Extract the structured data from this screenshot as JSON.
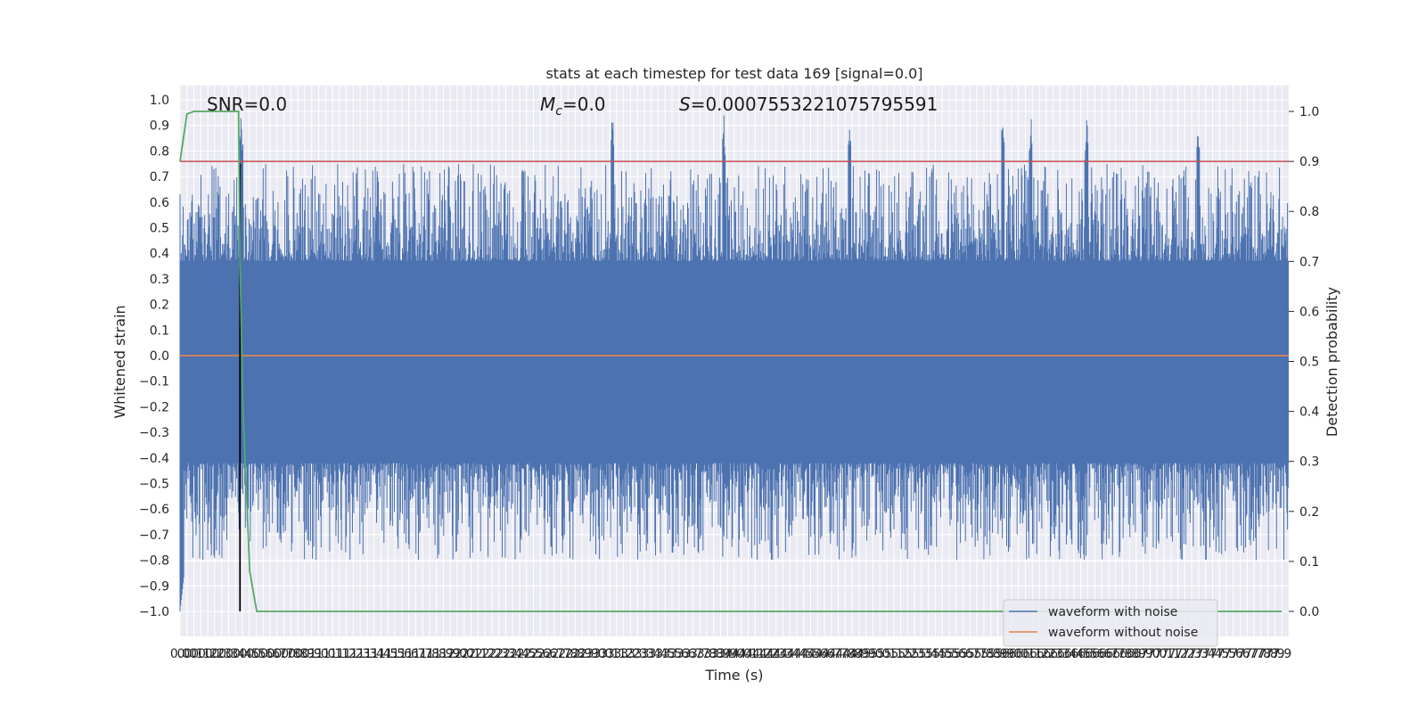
{
  "chart_data": {
    "type": "line",
    "title": "stats at each timestep for test data 169 [signal=0.0]",
    "xlabel": "Time (s)",
    "ylabel": "Whitened strain",
    "ylabel_right": "Detection probability",
    "annotations": {
      "snr": "SNR=0.0",
      "mc_symbol": "M",
      "mc_sub": "c",
      "mc_value": "=0.0",
      "s_symbol": "S",
      "s_value": "=0.0007553221075795591"
    },
    "xlim": [
      0.0,
      7.95
    ],
    "ylim": [
      -1.1,
      1.05
    ],
    "ylim_right": [
      -0.05,
      1.05
    ],
    "x_ticks": [
      "0.0",
      "0.0",
      "0.1",
      "0.1",
      "0.2",
      "0.2",
      "0.3",
      "0.3",
      "0.4",
      "0.4",
      "0.5",
      "0.5",
      "0.6",
      "0.6",
      "0.7",
      "0.7",
      "0.8",
      "0.8",
      "0.9",
      "0.9",
      "1.0",
      "1.0",
      "1.1",
      "1.1",
      "1.2",
      "1.2",
      "1.3",
      "1.3",
      "1.4",
      "1.4",
      "1.5",
      "1.5",
      "1.6",
      "1.6",
      "1.7",
      "1.7",
      "1.8",
      "1.8",
      "1.9",
      "1.9",
      "2.0",
      "2.0",
      "2.1",
      "2.1",
      "2.2",
      "2.2",
      "2.3",
      "2.3",
      "2.4",
      "2.4",
      "2.5",
      "2.5",
      "2.6",
      "2.6",
      "2.7",
      "2.7",
      "2.8",
      "2.8",
      "2.9",
      "2.9",
      "3.0",
      "3.0",
      "3.1",
      "3.1",
      "3.2",
      "3.2",
      "3.3",
      "3.3",
      "3.4",
      "3.4",
      "3.5",
      "3.5",
      "3.6",
      "3.6",
      "3.7",
      "3.7",
      "3.8",
      "3.8",
      "3.9",
      "3.9",
      "4.0",
      "4.0",
      "4.1",
      "4.1",
      "4.2",
      "4.2",
      "4.3",
      "4.3",
      "4.4",
      "4.4",
      "4.5",
      "4.5",
      "4.6",
      "4.6",
      "4.7",
      "4.7",
      "4.8",
      "4.8",
      "4.9",
      "4.9",
      "5.0",
      "5.0",
      "5.1",
      "5.1",
      "5.2",
      "5.2",
      "5.3",
      "5.3",
      "5.4",
      "5.4",
      "5.5",
      "5.5",
      "5.6",
      "5.6",
      "5.7",
      "5.7",
      "5.8",
      "5.8",
      "5.9",
      "5.9",
      "6.0",
      "6.0",
      "6.1",
      "6.1",
      "6.2",
      "6.2",
      "6.3",
      "6.3",
      "6.4",
      "6.4",
      "6.5",
      "6.5",
      "6.6",
      "6.6",
      "6.7",
      "6.7",
      "6.8",
      "6.8",
      "6.9",
      "6.9",
      "7.0",
      "7.0",
      "7.1",
      "7.1",
      "7.2",
      "7.2",
      "7.3",
      "7.3",
      "7.4",
      "7.4",
      "7.5",
      "7.5",
      "7.6",
      "7.6",
      "7.7",
      "7.7",
      "7.8",
      "7.8",
      "7.9",
      "7.9"
    ],
    "y_ticks": [
      "1.0",
      "0.9",
      "0.8",
      "0.7",
      "0.6",
      "0.5",
      "0.4",
      "0.3",
      "0.2",
      "0.1",
      "0.0",
      "-0.1",
      "-0.2",
      "-0.3",
      "-0.4",
      "-0.5",
      "-0.6",
      "-0.7",
      "-0.8",
      "-0.9",
      "-1.0"
    ],
    "y_tick_values": [
      1.0,
      0.9,
      0.8,
      0.7,
      0.6,
      0.5,
      0.4,
      0.3,
      0.2,
      0.1,
      0.0,
      -0.1,
      -0.2,
      -0.3,
      -0.4,
      -0.5,
      -0.6,
      -0.7,
      -0.8,
      -0.9,
      -1.0
    ],
    "y_ticks_right": [
      "1.0",
      "0.9",
      "0.8",
      "0.7",
      "0.6",
      "0.5",
      "0.4",
      "0.3",
      "0.2",
      "0.1",
      "0.0"
    ],
    "y_tick_values_right": [
      1.0,
      0.9,
      0.8,
      0.7,
      0.6,
      0.5,
      0.4,
      0.3,
      0.2,
      0.1,
      0.0
    ],
    "noise_envelope": {
      "core_low": -0.42,
      "core_high": 0.37,
      "max_peak": 0.96,
      "min_trough": -1.0,
      "peak_times": [
        0.44,
        3.1,
        3.9,
        4.8,
        5.9,
        6.1,
        6.5,
        7.3
      ]
    },
    "series": [
      {
        "name": "waveform with noise",
        "color": "#4c72b0",
        "kind": "noise"
      },
      {
        "name": "waveform without noise",
        "color": "#dd8452",
        "kind": "constant",
        "y": 0.0
      },
      {
        "color": "#55a868",
        "axis": "right",
        "x": [
          0.0,
          0.05,
          0.1,
          0.2,
          0.3,
          0.42,
          0.43,
          0.45,
          0.5,
          0.55,
          7.9
        ],
        "y": [
          0.9,
          0.995,
          1.0,
          1.0,
          1.0,
          1.0,
          0.7,
          0.42,
          0.08,
          0.0,
          0.0
        ]
      }
    ],
    "threshold_right": {
      "y": 0.9,
      "color": "#c44e52"
    },
    "vline": {
      "x": 0.43,
      "color": "#000000"
    },
    "legend": {
      "location": "lower-right",
      "entries": [
        "waveform with noise",
        "waveform without noise"
      ]
    }
  }
}
